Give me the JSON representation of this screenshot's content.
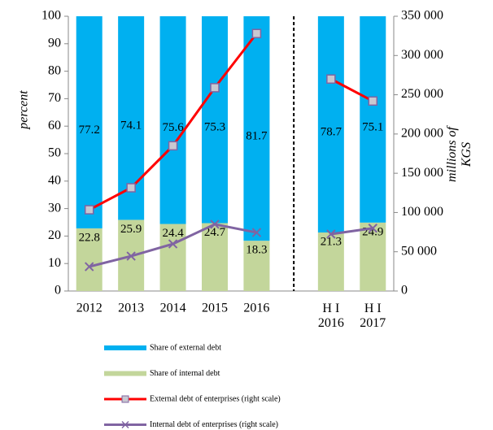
{
  "chart_data": {
    "type": "bar-line",
    "categories": [
      "2012",
      "2013",
      "2014",
      "2015",
      "2016",
      "H I\n2016",
      "H I\n2017"
    ],
    "ylabel": "percent",
    "y2label": "millions of\nKGS",
    "ylim": [
      0,
      100
    ],
    "yticks": [
      0,
      10,
      20,
      30,
      40,
      50,
      60,
      70,
      80,
      90,
      100
    ],
    "y2lim": [
      0,
      350000
    ],
    "y2ticks": [
      0,
      {
        "value": 50000,
        "label": "50 000"
      },
      {
        "value": 100000,
        "label": "100 000"
      },
      {
        "value": 150000,
        "label": "150 000"
      },
      {
        "value": 200000,
        "label": "200 000"
      },
      {
        "value": 250000,
        "label": "250 000"
      },
      {
        "value": 300000,
        "label": "300 000"
      },
      {
        "value": 350000,
        "label": "350 000"
      }
    ],
    "divider_after": 4,
    "series": [
      {
        "name": "Share of external debt",
        "kind": "bar",
        "stack_order": 1,
        "color": "#00b0f0",
        "values": [
          77.2,
          74.1,
          75.6,
          75.3,
          81.7,
          78.7,
          75.1
        ]
      },
      {
        "name": "Share of internal debt",
        "kind": "bar",
        "stack_order": 0,
        "color": "#c3d69b",
        "values": [
          22.8,
          25.9,
          24.4,
          24.7,
          18.3,
          21.3,
          24.9
        ]
      },
      {
        "name": "External debt of enterprises (right scale)",
        "kind": "line",
        "axis": "y2",
        "marker": "square",
        "color": "#ff0000",
        "values": [
          103500,
          131500,
          185000,
          259000,
          328000,
          270000,
          242000
        ]
      },
      {
        "name": "Internal debt of enterprises (right scale)",
        "kind": "line",
        "axis": "y2",
        "marker": "x",
        "color": "#8064a2",
        "values": [
          31000,
          44500,
          60000,
          85000,
          74500,
          72500,
          80000
        ]
      }
    ]
  }
}
